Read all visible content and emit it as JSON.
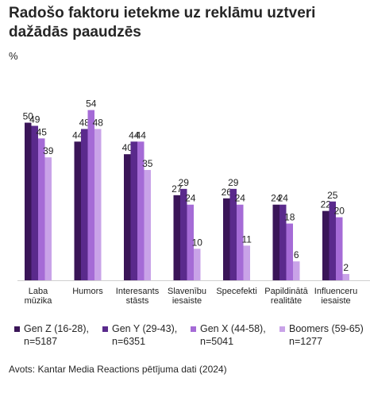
{
  "header": {
    "title": "Radošo faktoru ietekme uz reklāmu uztveri dažādās paaudzēs",
    "unit": "%"
  },
  "footer": {
    "source": "Avots: Kantar Media Reactions pētījuma dati (2024)"
  },
  "chart_data": {
    "type": "bar",
    "title": "Radošo faktoru ietekme uz reklāmu uztveri dažādās paaudzēs",
    "ylabel": "%",
    "ylim": [
      0,
      60
    ],
    "grid": false,
    "legend": "bottom",
    "categories": [
      [
        "Laba",
        "mūzika"
      ],
      [
        "Humors"
      ],
      [
        "Interesants",
        "stāsts"
      ],
      [
        "Slavenību",
        "iesaiste"
      ],
      [
        "Specefekti"
      ],
      [
        "Papildinātā",
        "realitāte"
      ],
      [
        "Influenceru",
        "iesaiste"
      ]
    ],
    "series": [
      {
        "name": "Gen Z (16-28), n=5187",
        "color": "#3a1558",
        "values": [
          50,
          44,
          40,
          27,
          26,
          24,
          22
        ]
      },
      {
        "name": "Gen Y (29-43), n=6351",
        "color": "#5a2a8c",
        "values": [
          49,
          48,
          44,
          29,
          29,
          24,
          25
        ]
      },
      {
        "name": "Gen X (44-58), n=5041",
        "color": "#a56bd6",
        "values": [
          45,
          54,
          44,
          24,
          24,
          18,
          20
        ]
      },
      {
        "name": "Boomers (59-65) n=1277",
        "color": "#c9a3e8",
        "values": [
          39,
          48,
          35,
          10,
          11,
          6,
          2
        ]
      }
    ]
  },
  "legend_items": [
    {
      "label": "Gen Z (16-28),\nn=5187",
      "color": "#3a1558"
    },
    {
      "label": "Gen Y (29-43),\nn=6351",
      "color": "#5a2a8c"
    },
    {
      "label": "Gen X (44-58),\nn=5041",
      "color": "#a56bd6"
    },
    {
      "label": "Boomers (59-65)\nn=1277",
      "color": "#c9a3e8"
    }
  ]
}
